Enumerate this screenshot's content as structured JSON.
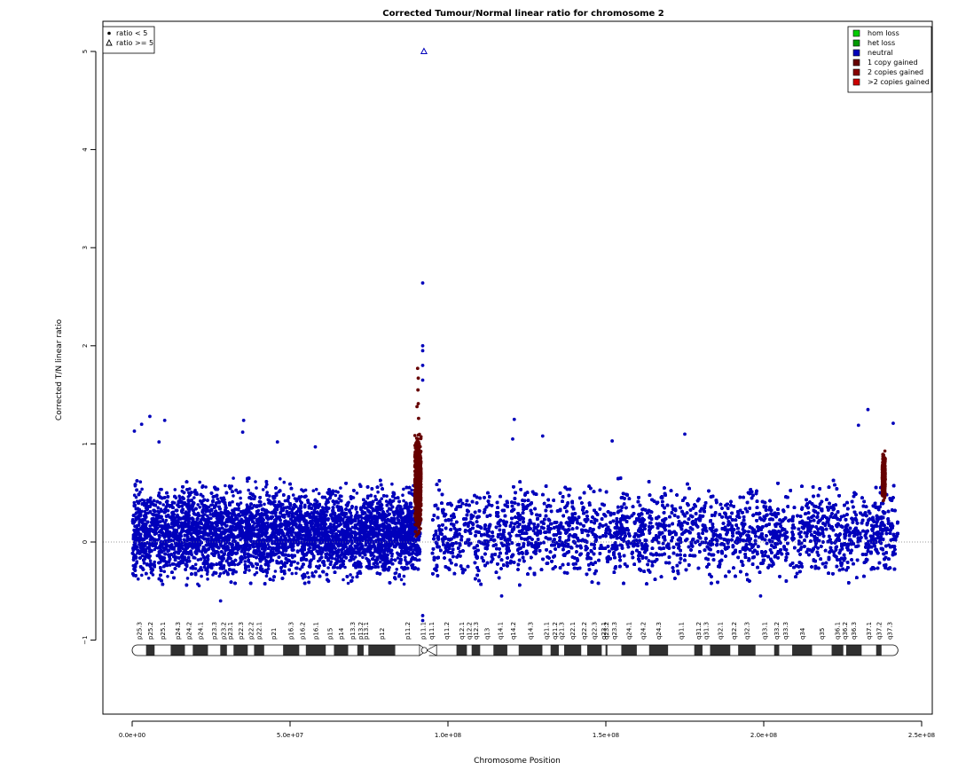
{
  "chart_data": {
    "type": "scatter",
    "title": "Corrected Tumour/Normal linear ratio for chromosome  2",
    "xlabel": "Chromosome Position",
    "ylabel": "Corrected T/N linear ratio",
    "xlim": [
      0,
      250000000
    ],
    "ylim": [
      -1.8,
      5.4
    ],
    "xticks": [
      0,
      50000000,
      100000000,
      150000000,
      200000000,
      250000000
    ],
    "xtick_labels": [
      "0.0e+00",
      "5.0e+07",
      "1.0e+08",
      "1.5e+08",
      "2.0e+08",
      "2.5e+08"
    ],
    "yticks": [
      -1,
      0,
      1,
      2,
      3,
      4,
      5
    ],
    "ytick_labels": [
      "−1",
      "0",
      "1",
      "2",
      "3",
      "4",
      "5"
    ],
    "reference_line": 0,
    "chromosome_length": 242500000,
    "centromere": 92500000,
    "shape_legend": [
      {
        "label": "ratio < 5",
        "marker": "filled-circle"
      },
      {
        "label": "ratio >= 5",
        "marker": "open-triangle"
      }
    ],
    "state_legend": [
      {
        "label": "hom loss",
        "color": "#00cc00"
      },
      {
        "label": "het loss",
        "color": "#009900"
      },
      {
        "label": "neutral",
        "color": "#0000bb"
      },
      {
        "label": "1 copy gained",
        "color": "#660000"
      },
      {
        "label": "2 copies gained",
        "color": "#880000"
      },
      {
        "label": ">2 copies gained",
        "color": "#cc0000"
      }
    ],
    "bands": [
      {
        "name": "p25.3",
        "start": 0,
        "end": 4400000,
        "stain": "white"
      },
      {
        "name": "p25.2",
        "start": 4400000,
        "end": 7100000,
        "stain": "black"
      },
      {
        "name": "p25.1",
        "start": 7100000,
        "end": 12200000,
        "stain": "white"
      },
      {
        "name": "p24.3",
        "start": 12200000,
        "end": 16700000,
        "stain": "black"
      },
      {
        "name": "p24.2",
        "start": 16700000,
        "end": 19200000,
        "stain": "white"
      },
      {
        "name": "p24.1",
        "start": 19200000,
        "end": 24000000,
        "stain": "black"
      },
      {
        "name": "p23.3",
        "start": 24000000,
        "end": 27900000,
        "stain": "white"
      },
      {
        "name": "p23.2",
        "start": 27900000,
        "end": 30000000,
        "stain": "black"
      },
      {
        "name": "p23.1",
        "start": 30000000,
        "end": 32100000,
        "stain": "white"
      },
      {
        "name": "p22.3",
        "start": 32100000,
        "end": 36600000,
        "stain": "black"
      },
      {
        "name": "p22.2",
        "start": 36600000,
        "end": 38600000,
        "stain": "white"
      },
      {
        "name": "p22.1",
        "start": 38600000,
        "end": 41800000,
        "stain": "black"
      },
      {
        "name": "p21",
        "start": 41800000,
        "end": 47800000,
        "stain": "white"
      },
      {
        "name": "p16.3",
        "start": 47800000,
        "end": 52900000,
        "stain": "black"
      },
      {
        "name": "p16.2",
        "start": 52900000,
        "end": 55000000,
        "stain": "white"
      },
      {
        "name": "p16.1",
        "start": 55000000,
        "end": 61300000,
        "stain": "black"
      },
      {
        "name": "p15",
        "start": 61300000,
        "end": 63900000,
        "stain": "white"
      },
      {
        "name": "p14",
        "start": 63900000,
        "end": 68400000,
        "stain": "black"
      },
      {
        "name": "p13.3",
        "start": 68400000,
        "end": 71300000,
        "stain": "white"
      },
      {
        "name": "p13.2",
        "start": 71300000,
        "end": 73300000,
        "stain": "black"
      },
      {
        "name": "p13.1",
        "start": 73300000,
        "end": 74800000,
        "stain": "white"
      },
      {
        "name": "p12",
        "start": 74800000,
        "end": 83300000,
        "stain": "black"
      },
      {
        "name": "p11.2",
        "start": 83300000,
        "end": 91000000,
        "stain": "white"
      },
      {
        "name": "p11.1",
        "start": 91000000,
        "end": 93300000,
        "stain": "centromere"
      },
      {
        "name": "q11.1",
        "start": 93300000,
        "end": 96400000,
        "stain": "centromere"
      },
      {
        "name": "q11.2",
        "start": 96400000,
        "end": 102700000,
        "stain": "white"
      },
      {
        "name": "q12.1",
        "start": 102700000,
        "end": 106000000,
        "stain": "black"
      },
      {
        "name": "q12.2",
        "start": 106000000,
        "end": 107500000,
        "stain": "white"
      },
      {
        "name": "q12.3",
        "start": 107500000,
        "end": 110200000,
        "stain": "black"
      },
      {
        "name": "q13",
        "start": 110200000,
        "end": 114400000,
        "stain": "white"
      },
      {
        "name": "q14.1",
        "start": 114400000,
        "end": 118800000,
        "stain": "black"
      },
      {
        "name": "q14.2",
        "start": 118800000,
        "end": 122400000,
        "stain": "white"
      },
      {
        "name": "q14.3",
        "start": 122400000,
        "end": 129900000,
        "stain": "black"
      },
      {
        "name": "q21.1",
        "start": 129900000,
        "end": 132500000,
        "stain": "white"
      },
      {
        "name": "q21.2",
        "start": 132500000,
        "end": 135100000,
        "stain": "black"
      },
      {
        "name": "q21.3",
        "start": 135100000,
        "end": 136800000,
        "stain": "white"
      },
      {
        "name": "q22.1",
        "start": 136800000,
        "end": 142200000,
        "stain": "black"
      },
      {
        "name": "q22.2",
        "start": 142200000,
        "end": 144100000,
        "stain": "white"
      },
      {
        "name": "q22.3",
        "start": 144100000,
        "end": 148700000,
        "stain": "black"
      },
      {
        "name": "q23.1",
        "start": 148700000,
        "end": 149900000,
        "stain": "white"
      },
      {
        "name": "q23.2",
        "start": 149900000,
        "end": 150500000,
        "stain": "black"
      },
      {
        "name": "q23.3",
        "start": 150500000,
        "end": 154900000,
        "stain": "white"
      },
      {
        "name": "q24.1",
        "start": 154900000,
        "end": 159800000,
        "stain": "black"
      },
      {
        "name": "q24.2",
        "start": 159800000,
        "end": 163700000,
        "stain": "white"
      },
      {
        "name": "q24.3",
        "start": 163700000,
        "end": 169700000,
        "stain": "black"
      },
      {
        "name": "q31.1",
        "start": 169700000,
        "end": 178000000,
        "stain": "white"
      },
      {
        "name": "q31.2",
        "start": 178000000,
        "end": 180600000,
        "stain": "black"
      },
      {
        "name": "q31.3",
        "start": 180600000,
        "end": 183000000,
        "stain": "white"
      },
      {
        "name": "q32.1",
        "start": 183000000,
        "end": 189400000,
        "stain": "black"
      },
      {
        "name": "q32.2",
        "start": 189400000,
        "end": 191900000,
        "stain": "white"
      },
      {
        "name": "q32.3",
        "start": 191900000,
        "end": 197400000,
        "stain": "black"
      },
      {
        "name": "q33.1",
        "start": 197400000,
        "end": 203300000,
        "stain": "white"
      },
      {
        "name": "q33.2",
        "start": 203300000,
        "end": 204900000,
        "stain": "black"
      },
      {
        "name": "q33.3",
        "start": 204900000,
        "end": 209000000,
        "stain": "white"
      },
      {
        "name": "q34",
        "start": 209000000,
        "end": 215300000,
        "stain": "black"
      },
      {
        "name": "q35",
        "start": 215300000,
        "end": 221500000,
        "stain": "white"
      },
      {
        "name": "q36.1",
        "start": 221500000,
        "end": 225200000,
        "stain": "black"
      },
      {
        "name": "q36.2",
        "start": 225200000,
        "end": 226100000,
        "stain": "white"
      },
      {
        "name": "q36.3",
        "start": 226100000,
        "end": 231000000,
        "stain": "black"
      },
      {
        "name": "q37.1",
        "start": 231000000,
        "end": 235600000,
        "stain": "white"
      },
      {
        "name": "q37.2",
        "start": 235600000,
        "end": 237300000,
        "stain": "black"
      },
      {
        "name": "q37.3",
        "start": 237300000,
        "end": 242500000,
        "stain": "white"
      }
    ],
    "series": [
      {
        "name": "neutral",
        "color": "#0000bb",
        "marker": "filled-circle",
        "regions": [
          {
            "x_start": 100000,
            "x_end": 91200000,
            "y_low": -0.45,
            "y_high": 0.65
          },
          {
            "x_start": 95000000,
            "x_end": 242500000,
            "y_low": -0.45,
            "y_high": 0.65
          }
        ],
        "outliers": [
          {
            "x": 700000,
            "y": 1.13
          },
          {
            "x": 3000000,
            "y": 1.2
          },
          {
            "x": 5600000,
            "y": 1.28
          },
          {
            "x": 10300000,
            "y": 1.24
          },
          {
            "x": 8500000,
            "y": 1.02
          },
          {
            "x": 35300000,
            "y": 1.24
          },
          {
            "x": 35000000,
            "y": 1.12
          },
          {
            "x": 46000000,
            "y": 1.02
          },
          {
            "x": 58000000,
            "y": 0.97
          },
          {
            "x": 28000000,
            "y": -0.6
          },
          {
            "x": 92000000,
            "y": 2.64
          },
          {
            "x": 92000000,
            "y": 2.0
          },
          {
            "x": 92000000,
            "y": 1.95
          },
          {
            "x": 92000000,
            "y": 1.8
          },
          {
            "x": 92000000,
            "y": 1.65
          },
          {
            "x": 92000000,
            "y": -0.8
          },
          {
            "x": 92000000,
            "y": -0.75
          },
          {
            "x": 121000000,
            "y": 1.25
          },
          {
            "x": 120500000,
            "y": 1.05
          },
          {
            "x": 130000000,
            "y": 1.08
          },
          {
            "x": 152000000,
            "y": 1.03
          },
          {
            "x": 175000000,
            "y": 1.1
          },
          {
            "x": 233000000,
            "y": 1.35
          },
          {
            "x": 230000000,
            "y": 1.19
          },
          {
            "x": 241000000,
            "y": 1.21
          },
          {
            "x": 117000000,
            "y": -0.55
          },
          {
            "x": 199000000,
            "y": -0.55
          }
        ]
      },
      {
        "name": "1 copy gained",
        "color": "#660000",
        "marker": "filled-circle",
        "regions": [
          {
            "x_start": 89500000,
            "x_end": 91500000,
            "y_low": 0.05,
            "y_high": 1.15
          },
          {
            "x_start": 237500000,
            "x_end": 238500000,
            "y_low": 0.4,
            "y_high": 0.95
          }
        ],
        "outliers": [
          {
            "x": 90400000,
            "y": 1.77
          },
          {
            "x": 90600000,
            "y": 1.67
          },
          {
            "x": 90500000,
            "y": 1.55
          },
          {
            "x": 90600000,
            "y": 1.41
          },
          {
            "x": 90200000,
            "y": 1.38
          },
          {
            "x": 90700000,
            "y": 1.26
          }
        ]
      },
      {
        "name": "ratio >= 5",
        "color": "#0000bb",
        "marker": "open-triangle",
        "points": [
          {
            "x": 92400000,
            "y": 5.0
          }
        ]
      }
    ]
  }
}
